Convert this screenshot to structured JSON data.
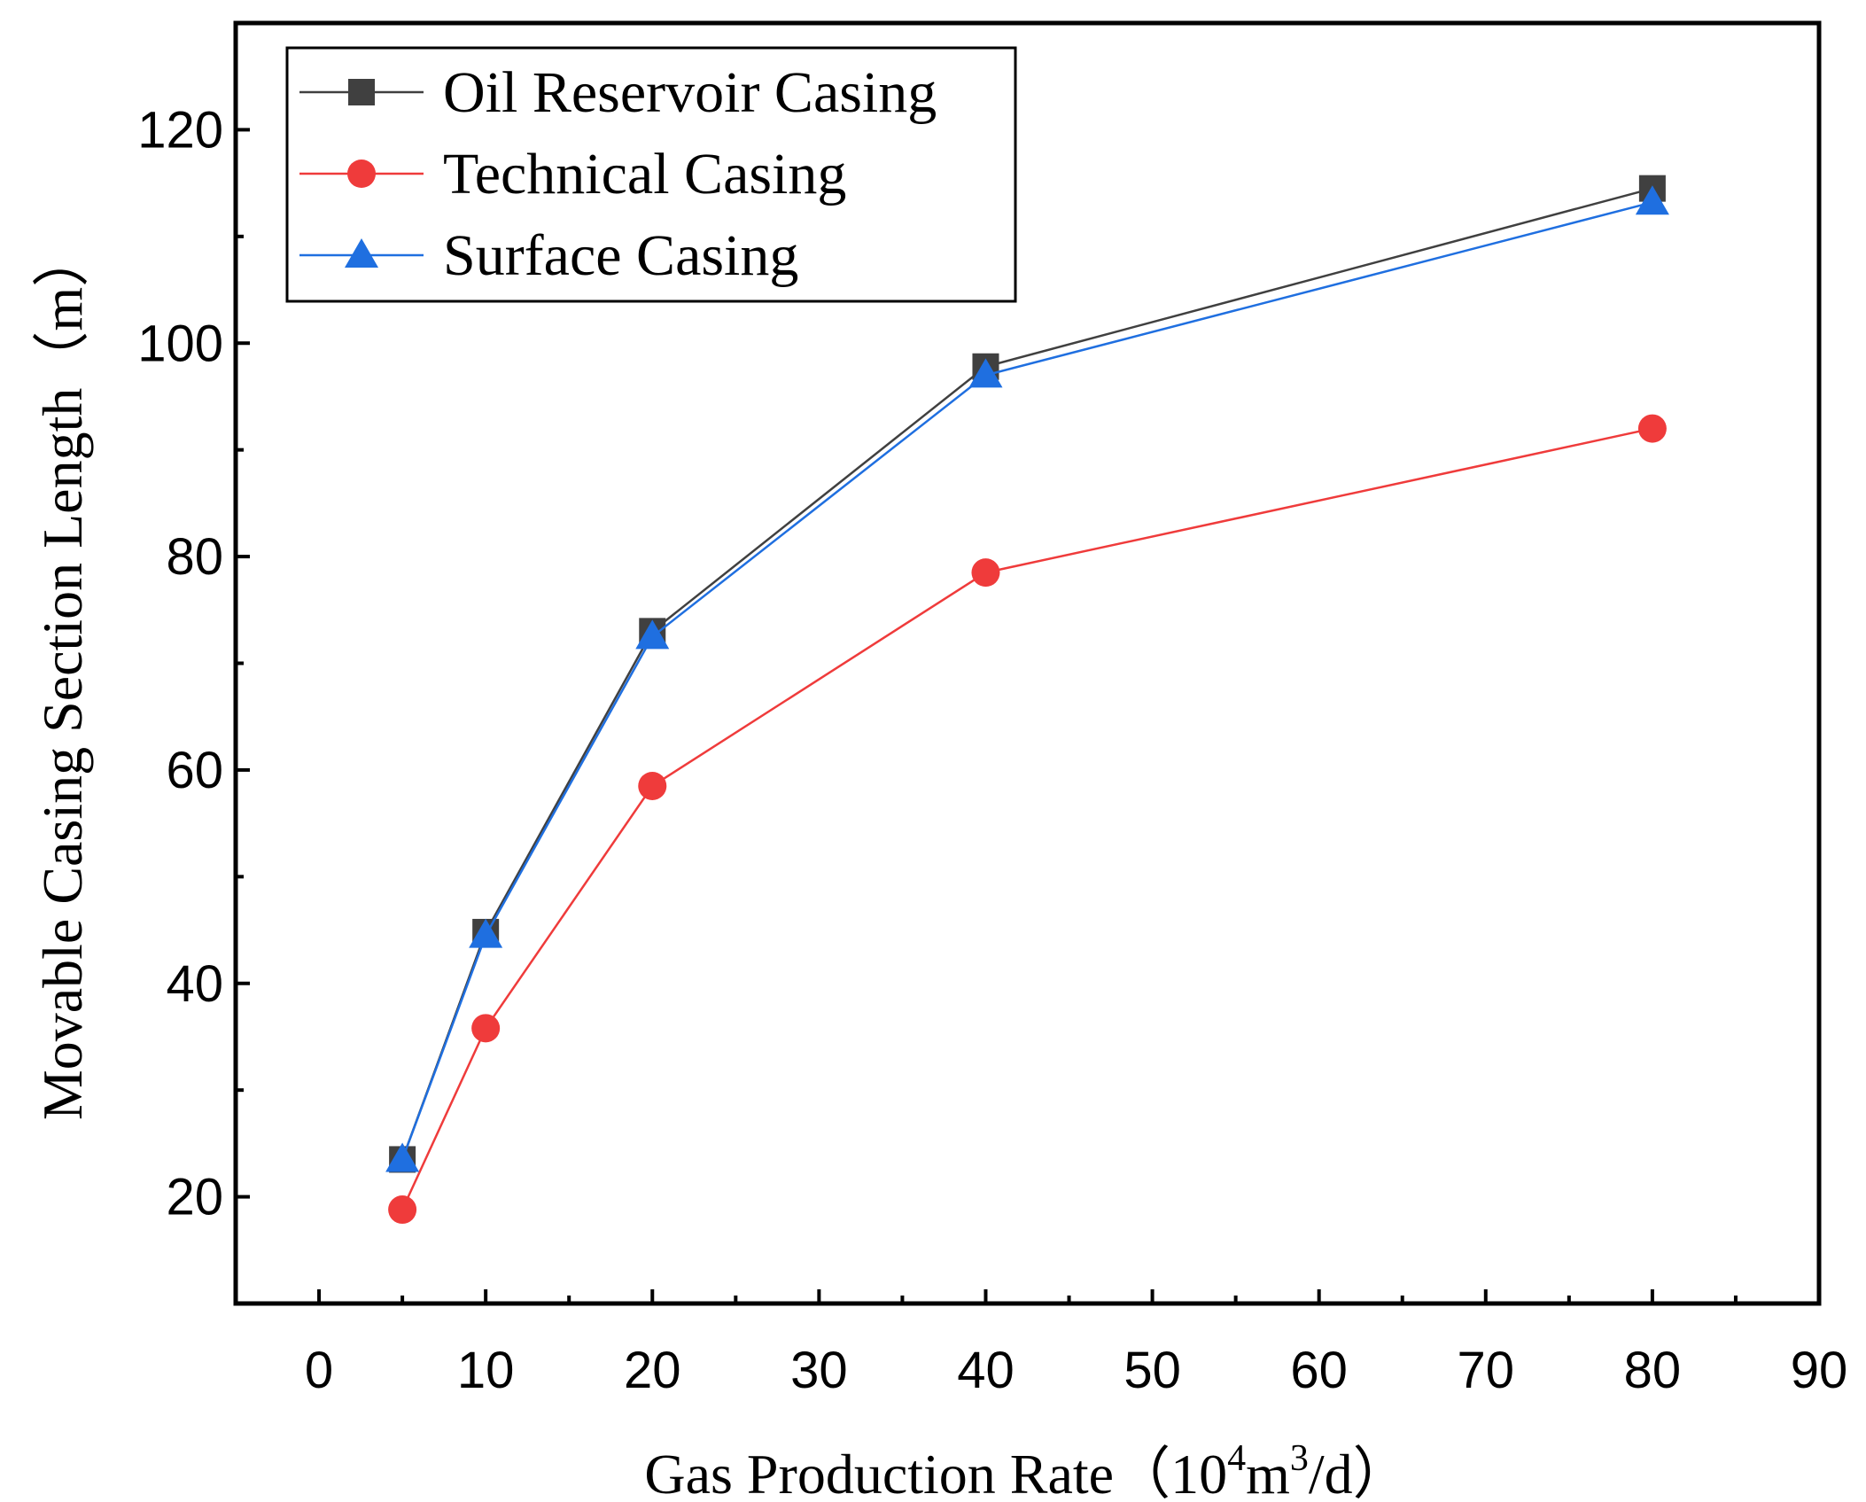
{
  "chart_data": {
    "type": "line",
    "title": "",
    "xlabel_text": "Gas Production Rate（",
    "xlabel_base": "10",
    "xlabel_exp1": "4",
    "xlabel_mid": "m",
    "xlabel_exp2": "3",
    "xlabel_tail": "/d）",
    "ylabel": "Movable Casing Section Length（m）",
    "xlim": [
      -5,
      90
    ],
    "ylim": [
      10,
      130
    ],
    "x_ticks": [
      0,
      10,
      20,
      30,
      40,
      50,
      60,
      70,
      80,
      90
    ],
    "x_tick_labels": [
      "0",
      "10",
      "20",
      "30",
      "40",
      "50",
      "60",
      "70",
      "80",
      "90"
    ],
    "y_ticks": [
      20,
      40,
      60,
      80,
      100,
      120
    ],
    "y_tick_labels": [
      "20",
      "40",
      "60",
      "80",
      "100",
      "120"
    ],
    "grid": false,
    "legend_position": "top-left",
    "x": [
      5,
      10,
      20,
      40,
      80
    ],
    "series": [
      {
        "name": "Oil Reservoir Casing",
        "values": [
          23.5,
          44.8,
          73.0,
          97.8,
          114.5
        ],
        "color": "#404040",
        "marker": "square"
      },
      {
        "name": "Technical Casing",
        "values": [
          18.8,
          35.8,
          58.5,
          78.5,
          92.0
        ],
        "color": "#ef3b3b",
        "marker": "circle"
      },
      {
        "name": "Surface Casing",
        "values": [
          23.5,
          44.5,
          72.5,
          97.0,
          113.2
        ],
        "color": "#1f6fe0",
        "marker": "triangle"
      }
    ]
  }
}
